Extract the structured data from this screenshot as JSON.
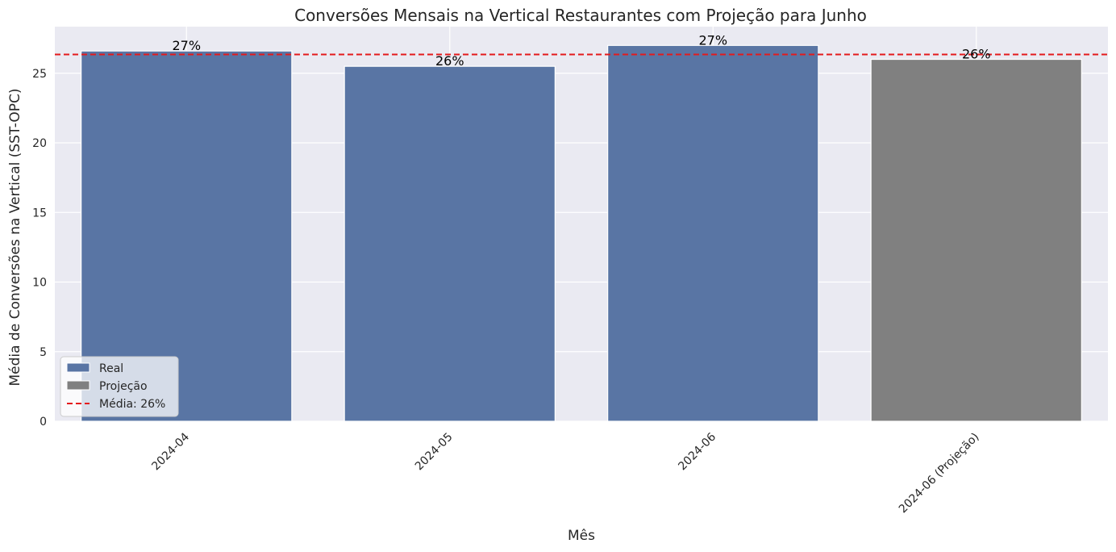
{
  "chart_data": {
    "type": "bar",
    "title": "Conversões Mensais na Vertical Restaurantes com Projeção para Junho",
    "xlabel": "Mês",
    "ylabel": "Média de Conversões na Vertical (SST-OPC)",
    "categories": [
      "2024-04",
      "2024-05",
      "2024-06",
      "2024-06 (Projeção)"
    ],
    "values": [
      26.6,
      25.5,
      27.0,
      26.0
    ],
    "data_labels": [
      "27%",
      "26%",
      "27%",
      "26%"
    ],
    "bar_series": [
      "Real",
      "Real",
      "Real",
      "Projeção"
    ],
    "ylim": [
      0,
      28.35
    ],
    "yticks": [
      0,
      5,
      10,
      15,
      20,
      25
    ],
    "grid": true,
    "reference_line": {
      "value": 26.35,
      "label": "Média: 26%",
      "color": "#e41a1c",
      "style": "dashed"
    },
    "legend": {
      "placement": "lower-left",
      "entries": [
        {
          "name": "Real",
          "color": "#5975a4",
          "kind": "patch"
        },
        {
          "name": "Projeção",
          "color": "#808080",
          "kind": "patch"
        },
        {
          "name": "Média: 26%",
          "color": "#e41a1c",
          "kind": "dashed-line"
        }
      ]
    },
    "colors": {
      "real": "#5975a4",
      "projection": "#808080",
      "background": "#eaeaf2",
      "grid": "#ffffff"
    }
  }
}
